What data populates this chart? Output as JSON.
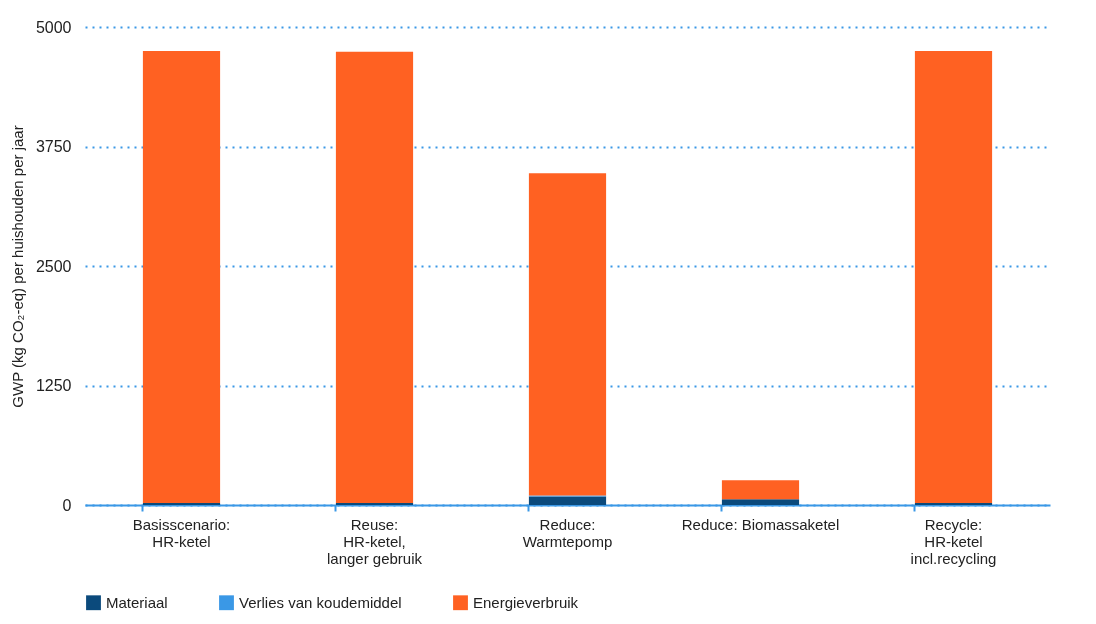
{
  "chart_data": {
    "type": "bar",
    "stacked": true,
    "ylabel": "GWP (kg CO₂-eq) per huishouden per jaar",
    "categories": [
      "Basisscenario:\nHR-ketel",
      "Reuse:\nHR-ketel,\nlanger gebruik",
      "Reduce:\nWarmtepomp",
      "Reduce: Biomassaketel",
      "Recycle:\nHR-ketel\nincl.recycling"
    ],
    "series": [
      {
        "name": "Materiaal",
        "color": "#0b4a7c",
        "values": [
          20,
          20,
          90,
          60,
          20
        ]
      },
      {
        "name": "Verlies van koudemiddel",
        "color": "#3a98e6",
        "values": [
          0,
          0,
          10,
          0,
          0
        ]
      },
      {
        "name": "Energieverbruik",
        "color": "#ff6122",
        "values": [
          4730,
          4720,
          3370,
          200,
          4730
        ]
      }
    ],
    "ylim": [
      0,
      5000
    ],
    "yticks": [
      0,
      1250,
      2500,
      3750,
      5000
    ],
    "grid": "y",
    "legend": "bottom"
  }
}
